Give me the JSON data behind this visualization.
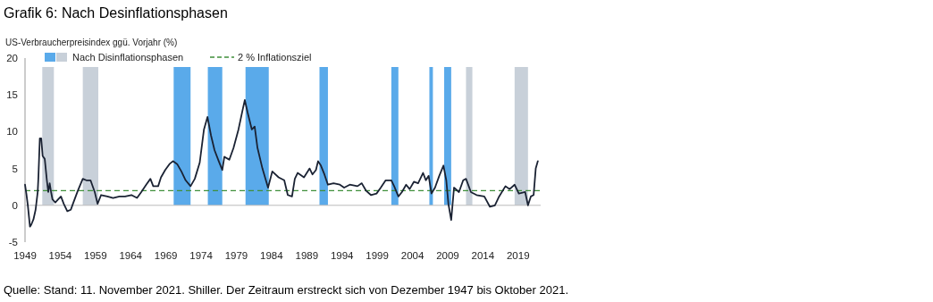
{
  "chart_data": {
    "type": "line",
    "title": "Grafik 6: Nach Desinflationsphasen",
    "ylabel": "US-Verbraucherpreisindex ggü. Vorjahr (%)",
    "annotations": [
      "Quelle: Stand: 11. November 2021. Shiller. Der Zeitraum erstreckt sich von Dezember 1947 bis Oktober 2021."
    ],
    "xlim": [
      1949,
      2022.2
    ],
    "xticks": [
      1949,
      1954,
      1959,
      1964,
      1969,
      1974,
      1979,
      1984,
      1989,
      1994,
      1999,
      2004,
      2009,
      2014,
      2019
    ],
    "ylim": [
      -5,
      20
    ],
    "yticks": [
      -5,
      0,
      5,
      10,
      15,
      20
    ],
    "legend": "top",
    "line_style": "solid",
    "marker": "none",
    "series": [
      {
        "color": "#1a2233",
        "x": [
          1949.0,
          1949.2,
          1949.4,
          1949.7,
          1949.9,
          1950.2,
          1950.5,
          1950.8,
          1950.9,
          1951.1,
          1951.3,
          1951.5,
          1951.8,
          1952.1,
          1952.3,
          1952.5,
          1952.7,
          1952.9,
          1953.3,
          1953.7,
          1954.1,
          1954.5,
          1955.0,
          1955.5,
          1955.8,
          1956.5,
          1957.2,
          1957.7,
          1958.3,
          1958.9,
          1959.3,
          1959.8,
          1960.7,
          1961.5,
          1962.4,
          1963.2,
          1964.1,
          1964.9,
          1965.5,
          1966.2,
          1966.8,
          1967.2,
          1967.9,
          1968.3,
          1968.9,
          1969.5,
          1970.0,
          1970.6,
          1971.2,
          1971.8,
          1972.5,
          1973.1,
          1973.8,
          1974.4,
          1974.9,
          1975.4,
          1975.9,
          1976.5,
          1977.0,
          1977.3,
          1978.0,
          1978.6,
          1979.3,
          1979.9,
          1980.2,
          1980.6,
          1981.2,
          1981.6,
          1982.0,
          1982.7,
          1983.5,
          1984.1,
          1985.0,
          1985.8,
          1986.3,
          1986.9,
          1987.3,
          1987.7,
          1988.6,
          1989.4,
          1989.8,
          1990.3,
          1990.6,
          1991.0,
          1991.5,
          1992.0,
          1992.8,
          1993.7,
          1994.3,
          1995.1,
          1996.2,
          1996.8,
          1997.4,
          1998.1,
          1998.9,
          1999.5,
          2000.2,
          2001.0,
          2001.4,
          2002.0,
          2002.5,
          2003.1,
          2003.6,
          2004.2,
          2004.8,
          2005.5,
          2005.9,
          2006.3,
          2006.7,
          2007.2,
          2007.8,
          2008.4,
          2008.8,
          2009.1,
          2009.5,
          2009.9,
          2010.6,
          2011.2,
          2011.6,
          2012.3,
          2013.1,
          2014.2,
          2015.0,
          2015.7,
          2016.3,
          2017.2,
          2017.8,
          2018.5,
          2019.1,
          2020.0,
          2020.4,
          2020.8,
          2021.2,
          2021.5,
          2021.8
        ],
        "values": [
          2.8,
          1.5,
          0,
          -2.9,
          -2.6,
          -1.9,
          -0.6,
          1.8,
          3.8,
          9.1,
          9.1,
          6.7,
          6.3,
          3.4,
          1.8,
          3.0,
          1.8,
          0.8,
          0.4,
          0.8,
          1.2,
          0.2,
          -0.8,
          -0.6,
          0.2,
          2.0,
          3.6,
          3.4,
          3.4,
          1.8,
          0.2,
          1.4,
          1.2,
          1.0,
          1.2,
          1.2,
          1.4,
          1.0,
          1.8,
          2.8,
          3.6,
          2.6,
          2.6,
          3.8,
          4.8,
          5.6,
          6.0,
          5.6,
          4.6,
          3.4,
          2.6,
          3.6,
          5.8,
          10.3,
          12.0,
          9.5,
          7.5,
          6.0,
          4.8,
          6.6,
          6.2,
          7.8,
          10.3,
          13.0,
          14.3,
          12.6,
          10.3,
          10.7,
          7.8,
          5.0,
          2.4,
          4.6,
          3.8,
          3.4,
          1.4,
          1.2,
          3.6,
          4.4,
          3.8,
          5.0,
          4.2,
          4.8,
          6.0,
          5.4,
          4.2,
          2.8,
          3.0,
          2.8,
          2.4,
          2.8,
          2.6,
          3.0,
          2.0,
          1.4,
          1.6,
          2.4,
          3.4,
          3.4,
          2.6,
          1.2,
          1.8,
          2.8,
          2.2,
          3.2,
          3.0,
          4.4,
          3.4,
          4.0,
          1.6,
          2.4,
          4.0,
          5.4,
          3.4,
          0.2,
          -2.0,
          2.4,
          1.8,
          3.4,
          3.6,
          1.8,
          1.4,
          1.2,
          -0.2,
          0.0,
          1.2,
          2.6,
          2.2,
          2.8,
          1.6,
          1.8,
          0.0,
          1.2,
          1.4,
          5.0,
          6.0
        ]
      }
    ],
    "ref_lines": [
      {
        "axis": "y",
        "value": 2,
        "label": "2 % Inflationsziel",
        "color": "#3f8f3a",
        "line_style": "dashed"
      }
    ],
    "bands": [
      {
        "axis": "x",
        "from": 1951.45,
        "to": 1953.1,
        "color": "#c8d0d9",
        "label": "Nach Disinflationsphasen"
      },
      {
        "axis": "x",
        "from": 1957.2,
        "to": 1959.4,
        "color": "#c8d0d9"
      },
      {
        "axis": "x",
        "from": 1970.1,
        "to": 1972.5,
        "color": "#5aaaea"
      },
      {
        "axis": "x",
        "from": 1974.95,
        "to": 1977.0,
        "color": "#5aaaea"
      },
      {
        "axis": "x",
        "from": 1980.3,
        "to": 1983.6,
        "color": "#5aaaea"
      },
      {
        "axis": "x",
        "from": 1990.8,
        "to": 1992.0,
        "color": "#5aaaea"
      },
      {
        "axis": "x",
        "from": 2001.0,
        "to": 2002.0,
        "color": "#5aaaea"
      },
      {
        "axis": "x",
        "from": 2006.4,
        "to": 2006.9,
        "color": "#5aaaea"
      },
      {
        "axis": "x",
        "from": 2008.5,
        "to": 2009.5,
        "color": "#5aaaea"
      },
      {
        "axis": "x",
        "from": 2011.6,
        "to": 2012.5,
        "color": "#c8d0d9"
      },
      {
        "axis": "x",
        "from": 2018.5,
        "to": 2020.4,
        "color": "#c8d0d9"
      }
    ]
  }
}
